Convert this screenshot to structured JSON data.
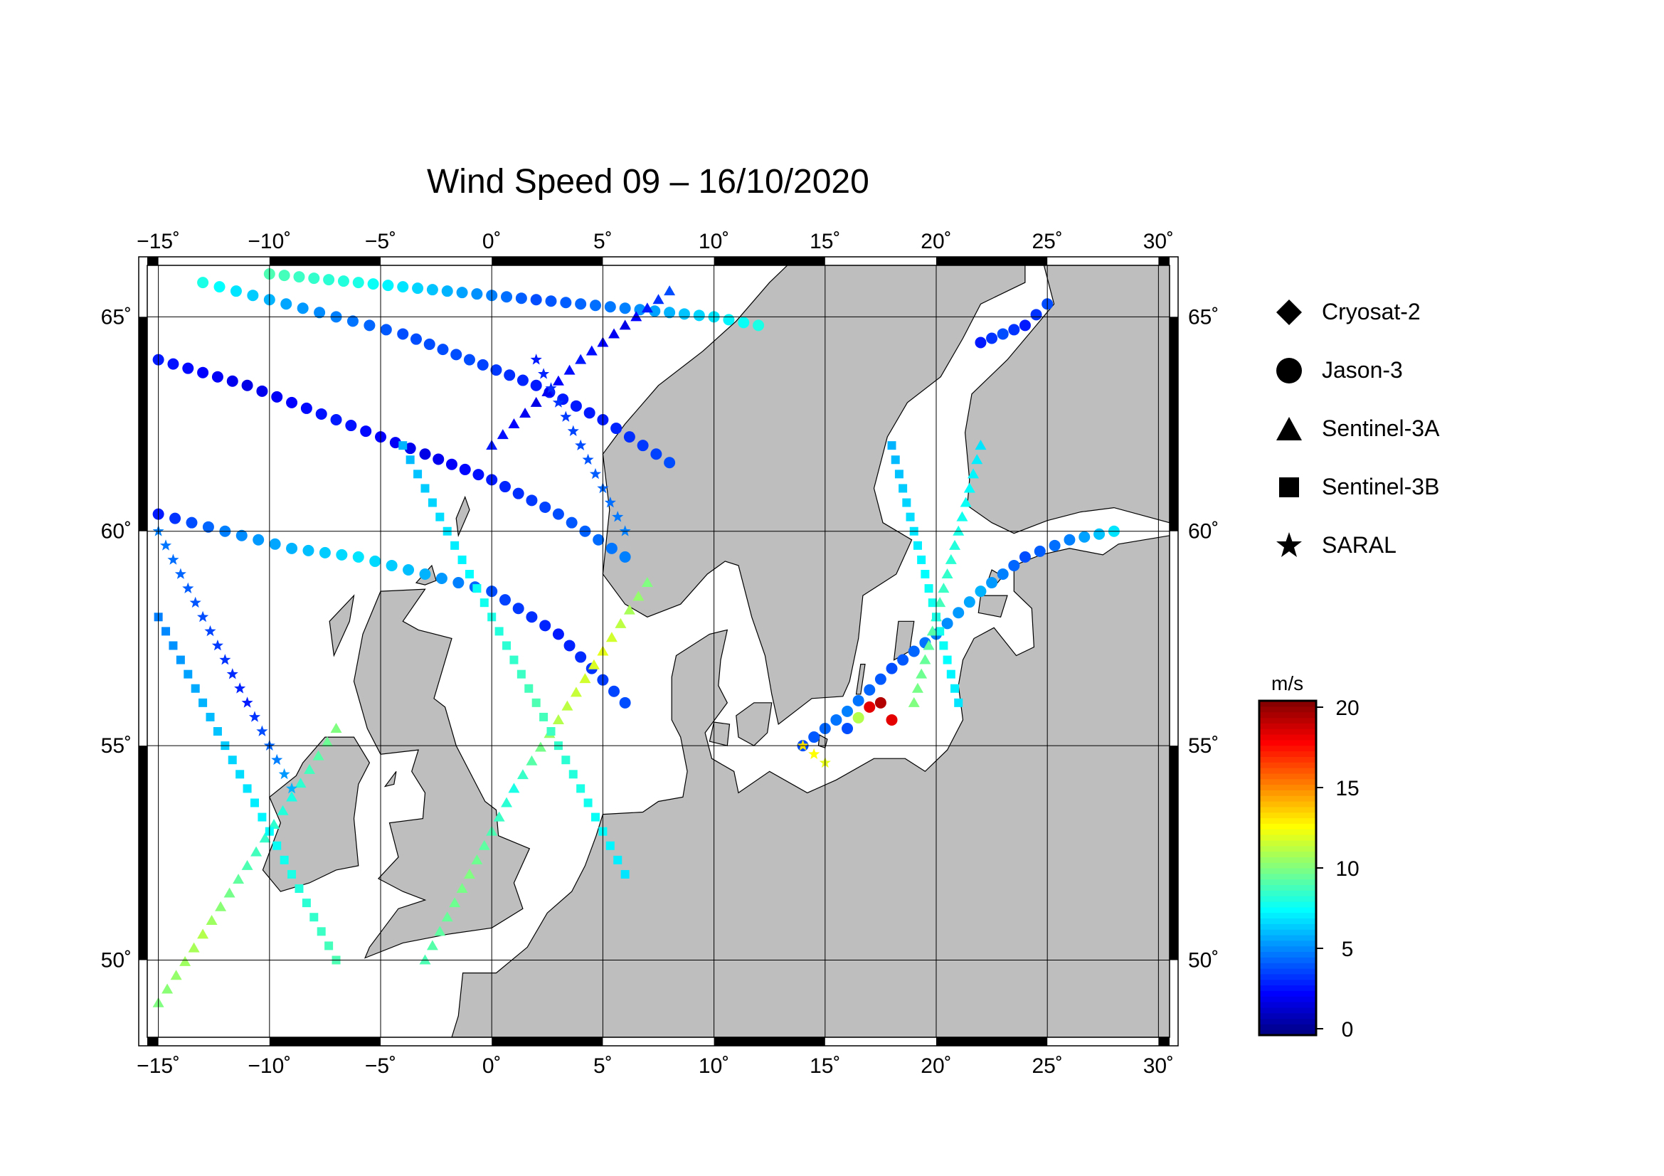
{
  "title": "Wind Speed 09 – 16/10/2020",
  "map": {
    "lon_range": [
      -15.5,
      30.5
    ],
    "lat_range": [
      48.2,
      66.2
    ],
    "lon_ticks": [
      -15,
      -10,
      -5,
      0,
      5,
      10,
      15,
      20,
      25,
      30
    ],
    "lon_tick_labels": [
      "−15˚",
      "−10˚",
      "−5˚",
      "0˚",
      "5˚",
      "10˚",
      "15˚",
      "20˚",
      "25˚",
      "30˚"
    ],
    "lat_ticks": [
      50,
      55,
      60,
      65
    ],
    "lat_tick_labels": [
      "50˚",
      "55˚",
      "60˚",
      "65˚"
    ],
    "land_color": "#bebebe",
    "sea_color": "#ffffff"
  },
  "legend": {
    "items": [
      {
        "label": "Cryosat-2",
        "symbol": "diamond"
      },
      {
        "label": "Jason-3",
        "symbol": "circle"
      },
      {
        "label": "Sentinel-3A",
        "symbol": "triangle"
      },
      {
        "label": "Sentinel-3B",
        "symbol": "square"
      },
      {
        "label": "SARAL",
        "symbol": "star"
      }
    ]
  },
  "colorbar": {
    "unit": "m/s",
    "range": [
      0,
      20
    ],
    "ticks": [
      0,
      5,
      10,
      15,
      20
    ],
    "tick_labels": [
      "0",
      "5",
      "10",
      "15",
      "20"
    ],
    "colormap": "jet"
  },
  "chart_data": {
    "type": "scatter",
    "title": "Wind Speed 09 – 16/10/2020",
    "xlabel": "",
    "ylabel": "",
    "x_unit": "degrees longitude",
    "y_unit": "degrees latitude",
    "value_unit": "m/s",
    "xlim": [
      -15.5,
      30.5
    ],
    "ylim": [
      48.2,
      66.2
    ],
    "series": [
      {
        "name": "Jason-3",
        "symbol": "circle",
        "tracks": [
          {
            "lon": [
              -15.0,
              -12.0,
              -9.0,
              -6.0,
              -3.0,
              0.0,
              3.0,
              6.0
            ],
            "lat": [
              60.4,
              60.0,
              59.6,
              59.4,
              59.0,
              58.6,
              57.6,
              56.0
            ],
            "ws": [
              3,
              5,
              6,
              7,
              6,
              4,
              3,
              4
            ]
          },
          {
            "lon": [
              -15.0,
              -11.0,
              -7.0,
              -3.0,
              0.0,
              3.0,
              6.0
            ],
            "lat": [
              64.0,
              63.4,
              62.6,
              61.8,
              61.2,
              60.4,
              59.4
            ],
            "ws": [
              3,
              2,
              3,
              2,
              3,
              4,
              5
            ]
          },
          {
            "lon": [
              -13.0,
              -10.0,
              -7.0,
              -4.0,
              -1.0,
              2.0,
              5.0,
              8.0
            ],
            "lat": [
              65.8,
              65.4,
              65.0,
              64.6,
              64.0,
              63.4,
              62.6,
              61.6
            ],
            "ws": [
              8,
              6,
              5,
              4,
              4,
              3,
              3,
              4
            ]
          },
          {
            "lon": [
              -10.0,
              -6.0,
              -2.0,
              2.0,
              6.0,
              10.0,
              12.0
            ],
            "lat": [
              66.0,
              65.8,
              65.6,
              65.4,
              65.2,
              65.0,
              64.8
            ],
            "ws": [
              9,
              8,
              6,
              4,
              5,
              7,
              8
            ]
          },
          {
            "lon": [
              16.0,
              17.0,
              17.5,
              18.0
            ],
            "lat": [
              55.4,
              55.9,
              56.0,
              55.6
            ],
            "ws": [
              4,
              18,
              19,
              18
            ]
          },
          {
            "lon": [
              14.0,
              16.0,
              18.0,
              20.0,
              22.0,
              24.0,
              26.0,
              28.0
            ],
            "lat": [
              55.0,
              55.8,
              56.8,
              57.6,
              58.6,
              59.4,
              59.8,
              60.0
            ],
            "ws": [
              4,
              5,
              4,
              5,
              6,
              4,
              5,
              7
            ]
          },
          {
            "lon": [
              22.0,
              23.0,
              24.0,
              25.0
            ],
            "lat": [
              64.4,
              64.6,
              64.8,
              65.3
            ],
            "ws": [
              3,
              4,
              3,
              4
            ]
          }
        ]
      },
      {
        "name": "Sentinel-3A",
        "symbol": "triangle",
        "tracks": [
          {
            "lon": [
              -15.0,
              -13.0,
              -11.0,
              -9.0,
              -7.0
            ],
            "lat": [
              49.0,
              50.6,
              52.2,
              53.8,
              55.4
            ],
            "ws": [
              10,
              11,
              9,
              8,
              10
            ]
          },
          {
            "lon": [
              -3.0,
              -1.0,
              1.0,
              3.0,
              5.0,
              7.0
            ],
            "lat": [
              50.0,
              52.0,
              54.0,
              55.6,
              57.2,
              58.8
            ],
            "ws": [
              9,
              10,
              8,
              11,
              12,
              10
            ]
          },
          {
            "lon": [
              0.0,
              2.0,
              4.0,
              6.0,
              8.0
            ],
            "lat": [
              62.0,
              63.0,
              64.0,
              64.8,
              65.6
            ],
            "ws": [
              3,
              2,
              3,
              2,
              4
            ]
          },
          {
            "lon": [
              19.0,
              20.0,
              21.0,
              22.0
            ],
            "lat": [
              56.0,
              58.0,
              60.0,
              62.0
            ],
            "ws": [
              10,
              9,
              8,
              7
            ]
          }
        ]
      },
      {
        "name": "Sentinel-3B",
        "symbol": "square",
        "tracks": [
          {
            "lon": [
              -15.0,
              -13.0,
              -11.0,
              -9.0,
              -7.0
            ],
            "lat": [
              58.0,
              56.0,
              54.0,
              52.0,
              50.0
            ],
            "ws": [
              5,
              6,
              7,
              8,
              9
            ]
          },
          {
            "lon": [
              -4.0,
              -2.0,
              0.0,
              2.0,
              4.0,
              6.0
            ],
            "lat": [
              62.0,
              60.0,
              58.0,
              56.0,
              54.0,
              52.0
            ],
            "ws": [
              6,
              7,
              8,
              9,
              8,
              7
            ]
          },
          {
            "lon": [
              18.0,
              19.0,
              20.0,
              21.0
            ],
            "lat": [
              62.0,
              60.0,
              58.0,
              56.0
            ],
            "ws": [
              6,
              7,
              8,
              7
            ]
          }
        ]
      },
      {
        "name": "SARAL",
        "symbol": "star",
        "tracks": [
          {
            "lon": [
              -15.0,
              -13.0,
              -11.0,
              -9.0
            ],
            "lat": [
              60.0,
              58.0,
              56.0,
              54.0
            ],
            "ws": [
              5,
              4,
              3,
              6
            ]
          },
          {
            "lon": [
              2.0,
              4.0,
              6.0
            ],
            "lat": [
              64.0,
              62.0,
              60.0
            ],
            "ws": [
              3,
              4,
              5
            ]
          },
          {
            "lon": [
              14.0,
              15.0
            ],
            "lat": [
              55.0,
              54.6
            ],
            "ws": [
              13,
              12
            ]
          }
        ]
      }
    ]
  }
}
